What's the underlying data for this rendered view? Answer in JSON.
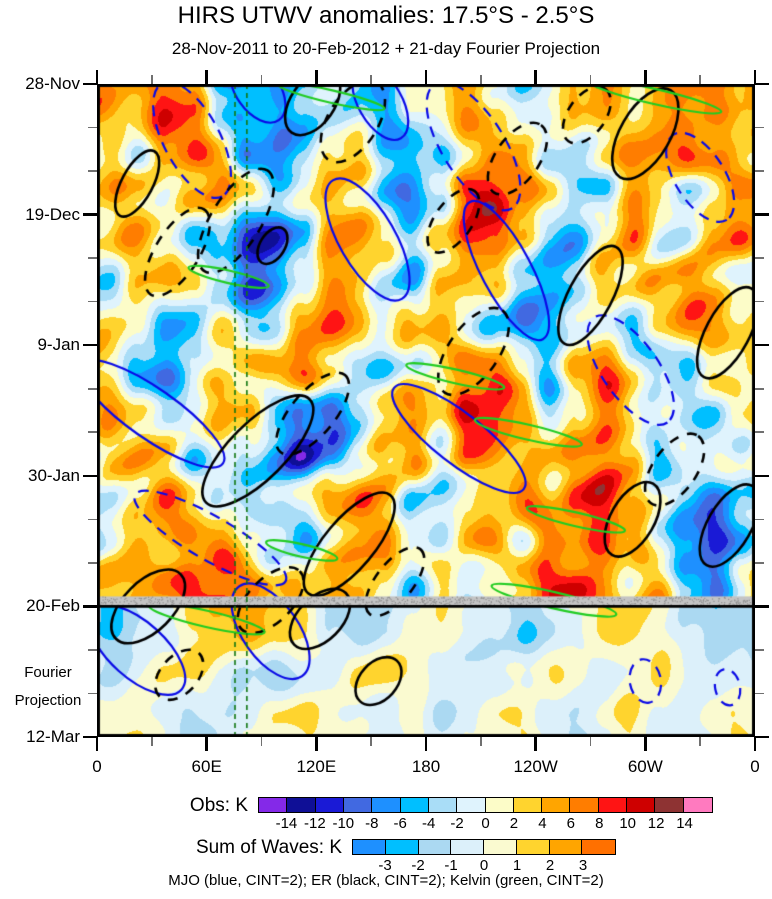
{
  "header": {
    "title": "HIRS UTWV anomalies: 17.5°S - 2.5°S",
    "subtitle": "28-Nov-2011 to 20-Feb-2012 + 21-day Fourier Projection"
  },
  "y_axis": {
    "major_ticks": [
      {
        "label": "28-Nov",
        "day": 0
      },
      {
        "label": "19-Dec",
        "day": 21
      },
      {
        "label": "9-Jan",
        "day": 42
      },
      {
        "label": "30-Jan",
        "day": 63
      },
      {
        "label": "20-Feb",
        "day": 84
      },
      {
        "label": "12-Mar",
        "day": 105
      }
    ],
    "minor_tick_days": [
      7,
      14,
      28,
      35,
      49,
      56,
      70,
      77,
      91,
      98
    ],
    "annotation_lines": [
      "Fourier",
      "Projection"
    ]
  },
  "x_axis": {
    "major_ticks": [
      {
        "label": "0",
        "deg": 0
      },
      {
        "label": "60E",
        "deg": 60
      },
      {
        "label": "120E",
        "deg": 120
      },
      {
        "label": "180",
        "deg": 180
      },
      {
        "label": "120W",
        "deg": 240
      },
      {
        "label": "60W",
        "deg": 300
      },
      {
        "label": "0",
        "deg": 360
      }
    ],
    "minor_tick_degs": [
      30,
      90,
      150,
      210,
      270,
      330
    ]
  },
  "colorbars": {
    "obs": {
      "label": "Obs: K",
      "colors": [
        "#8429E8",
        "#0F0F96",
        "#1A1AD6",
        "#4169E1",
        "#1E90FF",
        "#00BFFF",
        "#A9DDF7",
        "#DFF3FD",
        "#FCFCC8",
        "#FFD42E",
        "#FFA500",
        "#FF7D00",
        "#FF1414",
        "#CE0000",
        "#8E3333",
        "#FF7ABF"
      ],
      "ticks": [
        "-14",
        "-12",
        "-10",
        "-8",
        "-6",
        "-4",
        "-2",
        "0",
        "2",
        "4",
        "6",
        "8",
        "10",
        "12",
        "14"
      ]
    },
    "waves": {
      "label": "Sum of Waves: K",
      "colors": [
        "#1E90FF",
        "#00BFFF",
        "#ABD9F2",
        "#DCF0FA",
        "#FAFAD0",
        "#FFD42E",
        "#FFA500",
        "#FF7000"
      ],
      "ticks": [
        "-3",
        "-2",
        "-1",
        "0",
        "1",
        "2",
        "3"
      ]
    }
  },
  "caption": "MJO (blue, CINT=2); ER (black, CINT=2); Kelvin (green, CINT=2)",
  "style": {
    "mjo_color": "#0A0AE6",
    "er_color": "#000000",
    "kelvin_color": "#22CC22",
    "reference_line_color": "#117711",
    "band_color": "#C4C4C4",
    "axis_color": "#000000"
  },
  "chart_data": {
    "type": "heatmap",
    "title": "HIRS UTWV anomalies: 17.5°S - 2.5°S",
    "subtitle": "28-Nov-2011 to 20-Feb-2012 + 21-day Fourier Projection",
    "units": "K",
    "x": {
      "label": "longitude",
      "range_deg": [
        0,
        360
      ],
      "tick_labels": [
        "0",
        "60E",
        "120E",
        "180",
        "120W",
        "60W",
        "0"
      ]
    },
    "y": {
      "label": "time (downward)",
      "start": "28-Nov-2011",
      "obs_end": "20-Feb-2012",
      "end": "12-Mar-2012",
      "total_days": 105,
      "obs_days": 84,
      "tick_labels": [
        "28-Nov",
        "19-Dec",
        "9-Jan",
        "30-Jan",
        "20-Feb",
        "12-Mar"
      ]
    },
    "obs_scale": {
      "levels_step": 2,
      "range": [
        -14,
        14
      ]
    },
    "wave_scale": {
      "levels_step": 1,
      "range": [
        -3,
        3
      ]
    },
    "grid_note": "coarse visually-estimated anomaly field (K); columns = 15-deg lon bins from 0E, rows = 7-day bins from 28-Nov",
    "obs_grid": [
      [
        4,
        3,
        7,
        5,
        -4,
        -7,
        -6,
        -3,
        1,
        -2,
        -4,
        2,
        3,
        5,
        2,
        -3,
        -2,
        3,
        5,
        2,
        4,
        7,
        8,
        5
      ],
      [
        2,
        -3,
        5,
        8,
        3,
        -6,
        -8,
        -4,
        2,
        4,
        -2,
        -5,
        -3,
        2,
        6,
        4,
        -2,
        -4,
        2,
        3,
        5,
        8,
        4,
        2
      ],
      [
        5,
        2,
        -3,
        4,
        6,
        2,
        -4,
        3,
        5,
        2,
        -3,
        -6,
        -2,
        8,
        11,
        6,
        2,
        -4,
        -2,
        4,
        2,
        -3,
        2,
        4
      ],
      [
        3,
        6,
        2,
        -4,
        -6,
        -10,
        -12,
        -6,
        3,
        6,
        2,
        -4,
        2,
        12,
        9,
        4,
        -2,
        -5,
        2,
        5,
        -2,
        -4,
        3,
        5
      ],
      [
        -2,
        4,
        6,
        2,
        -5,
        -11,
        -8,
        -3,
        4,
        2,
        -4,
        -6,
        3,
        6,
        3,
        -3,
        -5,
        -2,
        4,
        2,
        3,
        5,
        2,
        -2
      ],
      [
        4,
        2,
        -3,
        -5,
        2,
        -4,
        -3,
        2,
        6,
        4,
        -2,
        3,
        5,
        2,
        -4,
        -6,
        -3,
        2,
        -2,
        -4,
        2,
        6,
        4,
        2
      ],
      [
        2,
        -4,
        -6,
        -2,
        3,
        2,
        4,
        6,
        2,
        -3,
        -5,
        -2,
        3,
        7,
        9,
        4,
        -4,
        6,
        8,
        3,
        -3,
        -5,
        2,
        3
      ],
      [
        5,
        3,
        -2,
        2,
        6,
        3,
        -3,
        -8,
        -10,
        -4,
        2,
        4,
        2,
        10,
        12,
        6,
        -2,
        3,
        9,
        4,
        2,
        -2,
        -4,
        2
      ],
      [
        3,
        6,
        2,
        -3,
        2,
        -2,
        -6,
        -11,
        -7,
        -2,
        4,
        6,
        -3,
        4,
        6,
        2,
        3,
        6,
        10,
        5,
        -3,
        2,
        3,
        -2
      ],
      [
        -3,
        2,
        7,
        4,
        -2,
        -4,
        -2,
        3,
        6,
        8,
        3,
        -4,
        -5,
        -2,
        3,
        6,
        2,
        8,
        13,
        7,
        2,
        -3,
        -5,
        -3
      ],
      [
        2,
        4,
        3,
        6,
        8,
        3,
        -2,
        -4,
        2,
        5,
        7,
        2,
        -4,
        3,
        2,
        -2,
        5,
        3,
        9,
        4,
        -2,
        -6,
        -9,
        -5
      ],
      [
        6,
        3,
        5,
        7,
        9,
        6,
        3,
        6,
        8,
        5,
        2,
        -3,
        2,
        -4,
        -2,
        3,
        6,
        8,
        5,
        2,
        4,
        -3,
        -6,
        2
      ]
    ],
    "projection_grid": [
      [
        -2,
        -1,
        0,
        1,
        2,
        3,
        2,
        1,
        -1,
        -2,
        -1,
        0,
        1,
        0,
        -1,
        -2,
        -1,
        0,
        1,
        1,
        0,
        -1,
        -2,
        -1
      ],
      [
        -1,
        0,
        1,
        1,
        0,
        -1,
        -2,
        -1,
        0,
        1,
        2,
        1,
        0,
        -1,
        -1,
        0,
        1,
        0,
        -1,
        0,
        1,
        0,
        -1,
        0
      ],
      [
        0,
        1,
        0,
        -1,
        -1,
        0,
        1,
        1,
        0,
        0,
        -1,
        0,
        -1,
        0,
        1,
        1,
        0,
        -1,
        0,
        1,
        0,
        -1,
        0,
        1
      ]
    ],
    "marker_lines": {
      "obs_end_band_day": 84,
      "kelvin_reference_lons": [
        75.5,
        82
      ]
    },
    "contour_legend": [
      {
        "wave": "MJO",
        "color": "blue",
        "cint": 2
      },
      {
        "wave": "ER",
        "color": "black",
        "cint": 2
      },
      {
        "wave": "Kelvin",
        "color": "green",
        "cint": 2
      }
    ],
    "contour_annotations": [
      {
        "w": "mjo",
        "s": "dashed",
        "lon": 52,
        "day": 9,
        "len": 70,
        "wid": 9,
        "ang": 62
      },
      {
        "w": "mjo",
        "s": "solid",
        "lon": 88,
        "day": 1,
        "len": 40,
        "wid": 7,
        "ang": 55
      },
      {
        "w": "mjo",
        "s": "solid",
        "lon": 155,
        "day": 3,
        "len": 45,
        "wid": 7,
        "ang": 60
      },
      {
        "w": "mjo",
        "s": "solid",
        "lon": 148,
        "day": 25,
        "len": 75,
        "wid": 9,
        "ang": 60
      },
      {
        "w": "mjo",
        "s": "dashed",
        "lon": 206,
        "day": 10,
        "len": 80,
        "wid": 10,
        "ang": 58
      },
      {
        "w": "mjo",
        "s": "solid",
        "lon": 224,
        "day": 30,
        "len": 85,
        "wid": 8,
        "ang": 62
      },
      {
        "w": "mjo",
        "s": "dashed",
        "lon": 330,
        "day": 15,
        "len": 55,
        "wid": 8,
        "ang": 58
      },
      {
        "w": "mjo",
        "s": "solid",
        "lon": 30,
        "day": 53,
        "len": 95,
        "wid": 8,
        "ang": 35
      },
      {
        "w": "mjo",
        "s": "dashed",
        "lon": 62,
        "day": 73,
        "len": 95,
        "wid": 7,
        "ang": 30
      },
      {
        "w": "mjo",
        "s": "solid",
        "lon": 198,
        "day": 57,
        "len": 90,
        "wid": 8,
        "ang": 38
      },
      {
        "w": "mjo",
        "s": "dashed",
        "lon": 292,
        "day": 46,
        "len": 70,
        "wid": 9,
        "ang": 55
      },
      {
        "w": "mjo",
        "s": "solid",
        "lon": 95,
        "day": 88,
        "len": 60,
        "wid": 9,
        "ang": 55
      },
      {
        "w": "mjo",
        "s": "solid",
        "lon": 22,
        "day": 91,
        "len": 65,
        "wid": 9,
        "ang": 42
      },
      {
        "w": "mjo",
        "s": "dashed",
        "lon": 300,
        "day": 96,
        "len": 24,
        "wid": 5,
        "ang": 80
      },
      {
        "w": "mjo",
        "s": "dashed",
        "lon": 345,
        "day": 97,
        "len": 20,
        "wid": 4,
        "ang": 78
      },
      {
        "w": "er",
        "s": "solid",
        "lon": 22,
        "day": 16,
        "len": 40,
        "wid": 5,
        "ang": -62
      },
      {
        "w": "er",
        "s": "dashed",
        "lon": 44,
        "day": 27,
        "len": 55,
        "wid": 7,
        "ang": -58
      },
      {
        "w": "er",
        "s": "dashed",
        "lon": 76,
        "day": 22,
        "len": 65,
        "wid": 8,
        "ang": -58
      },
      {
        "w": "er",
        "s": "solid",
        "lon": 96,
        "day": 26,
        "len": 22,
        "wid": 4,
        "ang": -58
      },
      {
        "w": "er",
        "s": "dashed",
        "lon": 140,
        "day": 6,
        "len": 50,
        "wid": 8,
        "ang": -58
      },
      {
        "w": "er",
        "s": "solid",
        "lon": 118,
        "day": 3,
        "len": 40,
        "wid": 7,
        "ang": -55
      },
      {
        "w": "er",
        "s": "solid",
        "lon": 300,
        "day": 8,
        "len": 55,
        "wid": 8,
        "ang": -60
      },
      {
        "w": "er",
        "s": "dashed",
        "lon": 268,
        "day": 5,
        "len": 35,
        "wid": 6,
        "ang": -55
      },
      {
        "w": "er",
        "s": "dashed",
        "lon": 230,
        "day": 12,
        "len": 45,
        "wid": 7,
        "ang": -55
      },
      {
        "w": "er",
        "s": "dashed",
        "lon": 195,
        "day": 22,
        "len": 40,
        "wid": 6,
        "ang": -55
      },
      {
        "w": "er",
        "s": "solid",
        "lon": 270,
        "day": 34,
        "len": 60,
        "wid": 7,
        "ang": -62
      },
      {
        "w": "er",
        "s": "dashed",
        "lon": 206,
        "day": 43,
        "len": 55,
        "wid": 8,
        "ang": -55
      },
      {
        "w": "er",
        "s": "solid",
        "lon": 345,
        "day": 40,
        "len": 55,
        "wid": 7,
        "ang": -62
      },
      {
        "w": "er",
        "s": "solid",
        "lon": 88,
        "day": 59,
        "len": 80,
        "wid": 9,
        "ang": -45
      },
      {
        "w": "er",
        "s": "dashed",
        "lon": 118,
        "day": 53,
        "len": 55,
        "wid": 7,
        "ang": -50
      },
      {
        "w": "er",
        "s": "solid",
        "lon": 138,
        "day": 74,
        "len": 70,
        "wid": 8,
        "ang": -50
      },
      {
        "w": "er",
        "s": "dashed",
        "lon": 163,
        "day": 80,
        "len": 45,
        "wid": 6,
        "ang": -52
      },
      {
        "w": "er",
        "s": "solid",
        "lon": 293,
        "day": 70,
        "len": 45,
        "wid": 7,
        "ang": -60
      },
      {
        "w": "er",
        "s": "dashed",
        "lon": 316,
        "day": 62,
        "len": 45,
        "wid": 7,
        "ang": -55
      },
      {
        "w": "er",
        "s": "solid",
        "lon": 346,
        "day": 71,
        "len": 50,
        "wid": 7,
        "ang": -60
      },
      {
        "w": "er",
        "s": "solid",
        "lon": 28,
        "day": 84,
        "len": 50,
        "wid": 8,
        "ang": -45
      },
      {
        "w": "er",
        "s": "dashed",
        "lon": 95,
        "day": 83,
        "len": 45,
        "wid": 7,
        "ang": -45
      },
      {
        "w": "er",
        "s": "solid",
        "lon": 122,
        "day": 86,
        "len": 40,
        "wid": 7,
        "ang": -45
      },
      {
        "w": "er",
        "s": "solid",
        "lon": 154,
        "day": 96,
        "len": 30,
        "wid": 6,
        "ang": -48
      },
      {
        "w": "er",
        "s": "dashed",
        "lon": 45,
        "day": 95,
        "len": 32,
        "wid": 6,
        "ang": -48
      },
      {
        "w": "kelvin",
        "s": "solid",
        "lon": 128,
        "day": 2,
        "len": 60,
        "wid": 2,
        "ang": 13
      },
      {
        "w": "kelvin",
        "s": "solid",
        "lon": 305,
        "day": 2,
        "len": 75,
        "wid": 2.4,
        "ang": 13
      },
      {
        "w": "kelvin",
        "s": "solid",
        "lon": 72,
        "day": 31,
        "len": 45,
        "wid": 2,
        "ang": 13
      },
      {
        "w": "kelvin",
        "s": "solid",
        "lon": 196,
        "day": 47,
        "len": 55,
        "wid": 2.2,
        "ang": 13
      },
      {
        "w": "kelvin",
        "s": "solid",
        "lon": 236,
        "day": 56,
        "len": 60,
        "wid": 2.4,
        "ang": 13
      },
      {
        "w": "kelvin",
        "s": "solid",
        "lon": 262,
        "day": 70,
        "len": 55,
        "wid": 2.2,
        "ang": 13
      },
      {
        "w": "kelvin",
        "s": "solid",
        "lon": 112,
        "day": 75,
        "len": 40,
        "wid": 2,
        "ang": 13
      },
      {
        "w": "kelvin",
        "s": "solid",
        "lon": 60,
        "day": 86,
        "len": 65,
        "wid": 2.6,
        "ang": 13
      },
      {
        "w": "kelvin",
        "s": "solid",
        "lon": 250,
        "day": 83,
        "len": 70,
        "wid": 2.6,
        "ang": 13
      }
    ]
  }
}
